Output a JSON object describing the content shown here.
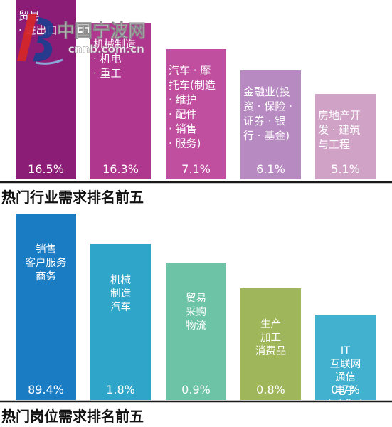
{
  "watermark": {
    "brand": "中国宁波网",
    "url": "cnnb.com.cn"
  },
  "chart_data": [
    {
      "type": "bar",
      "title": "热门行业需求排名前五",
      "categories": [
        "贸易\n· 进出口",
        "机械制造\n· 机电\n· 重工",
        "汽车 · 摩\n托车(制造\n· 维护\n· 配件\n· 销售\n· 服务)",
        "金融业(投\n资 · 保险 ·\n证券 · 银\n行 · 基金)",
        "房地产开\n发 · 建筑\n与工程"
      ],
      "values": [
        16.5,
        16.3,
        7.1,
        6.1,
        5.1
      ],
      "value_labels": [
        "16.5%",
        "16.3%",
        "7.1%",
        "6.1%",
        "5.1%"
      ],
      "colors": [
        "#8c1d77",
        "#b0378e",
        "#c04f9f",
        "#b88ac2",
        "#cfa2c6"
      ]
    },
    {
      "type": "bar",
      "title": "热门岗位需求排名前五",
      "categories": [
        "销售\n客户服务\n商务",
        "机械\n制造\n汽车",
        "贸易\n采购\n物流",
        "生产\n加工\n消费品",
        "IT\n互联网\n通信\n电子\n电商淘宝"
      ],
      "values": [
        89.4,
        1.8,
        0.9,
        0.8,
        0.7
      ],
      "value_labels": [
        "89.4%",
        "1.8%",
        "0.9%",
        "0.8%",
        "0.7%"
      ],
      "colors": [
        "#1a7cc3",
        "#2fa6c9",
        "#6cc3a5",
        "#a0b65a",
        "#41b1cf"
      ]
    }
  ]
}
